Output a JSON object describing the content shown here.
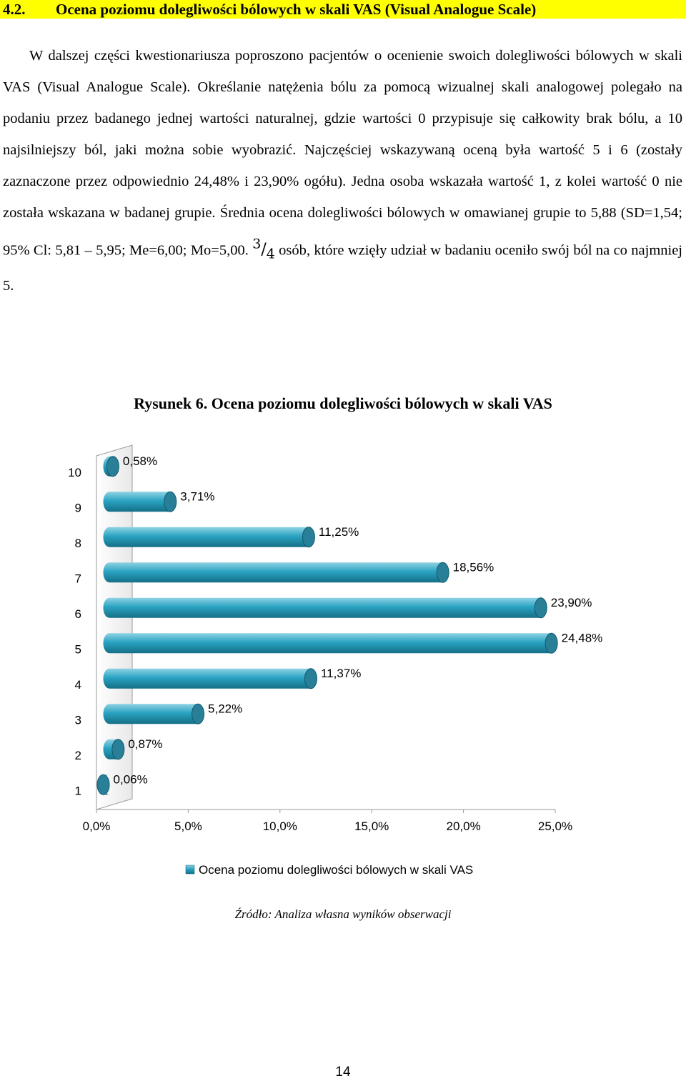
{
  "section": {
    "number": "4.2.",
    "title": "Ocena poziomu dolegliwości bólowych w skali VAS (Visual Analogue Scale)",
    "highlight_color": "#ffff00"
  },
  "paragraph": {
    "text_before": "W dalszej części kwestionariusza poproszono pacjentów o ocenienie swoich dolegliwości bólowych w skali VAS (Visual Analogue Scale). Określanie natężenia bólu za pomocą wizualnej skali analogowej polegało na podaniu przez badanego jednej wartości naturalnej, gdzie wartości 0 przypisuje się całkowity brak bólu, a 10 najsilniejszy ból, jaki można sobie wyobrazić. Najczęściej wskazywaną oceną była wartość 5 i 6 (zostały zaznaczone przez odpowiednio 24,48% i 23,90% ogółu). Jedna osoba wskazała wartość 1, z kolei wartość 0 nie została wskazana w badanej grupie. Średnia ocena dolegliwości bólowych w omawianej grupie to 5,88 (SD=1,54; 95% Cl: 5,81 – 5,95; Me=6,00; Mo=5,00.",
    "fraction_num": "3",
    "fraction_den": "4",
    "text_after": "osób, które wzięły udział w badaniu oceniło swój ból na co najmniej 5."
  },
  "figure": {
    "title": "Rysunek 6. Ocena poziomu dolegliwości bólowych w skali VAS",
    "source": "Źródło: Analiza własna wyników obserwacji"
  },
  "chart_data": {
    "type": "bar",
    "orientation": "horizontal",
    "style": "3d-cylinder",
    "categories": [
      "1",
      "2",
      "3",
      "4",
      "5",
      "6",
      "7",
      "8",
      "9",
      "10"
    ],
    "series": [
      {
        "name": "Ocena poziomu dolegliwości bólowych w skali VAS",
        "values": [
          0.06,
          0.87,
          5.22,
          11.37,
          24.48,
          23.9,
          18.56,
          11.25,
          3.71,
          0.58
        ],
        "labels": [
          "0,06%",
          "0,87%",
          "5,22%",
          "11,37%",
          "24,48%",
          "23,90%",
          "18,56%",
          "11,25%",
          "3,71%",
          "0,58%"
        ]
      }
    ],
    "xlim": [
      0,
      25
    ],
    "xticks": [
      "0,0%",
      "5,0%",
      "10,0%",
      "15,0%",
      "20,0%",
      "25,0%"
    ],
    "grid": false,
    "legend": "bottom",
    "colors": {
      "bar_top": "#8fd3e4",
      "bar_mid": "#2aa3c2",
      "bar_bottom": "#156f86",
      "cap": "#2a7f98",
      "cap_edge": "#0f5a6e"
    }
  },
  "page_number": "14"
}
